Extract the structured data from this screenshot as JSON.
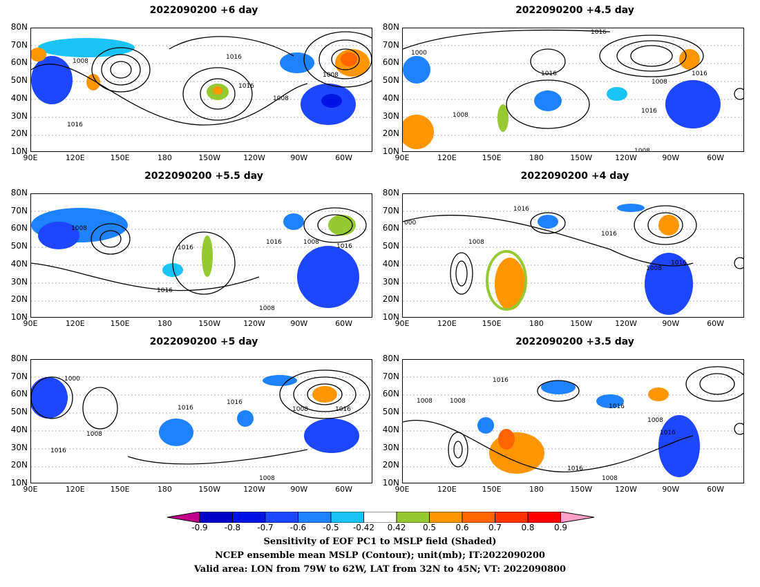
{
  "panels": [
    {
      "title": "2022090200  +6 day"
    },
    {
      "title": "2022090200  +4.5 day"
    },
    {
      "title": "2022090200  +5.5 day"
    },
    {
      "title": "2022090200  +4 day"
    },
    {
      "title": "2022090200  +5 day"
    },
    {
      "title": "2022090200  +3.5 day"
    }
  ],
  "axes": {
    "lat_labels": [
      "80N",
      "70N",
      "60N",
      "50N",
      "40N",
      "30N",
      "20N",
      "10N"
    ],
    "lon_labels": [
      "90E",
      "120E",
      "150E",
      "180",
      "150W",
      "120W",
      "90W",
      "60W"
    ]
  },
  "colorbar": {
    "ticks": [
      "-0.9",
      "-0.8",
      "-0.7",
      "-0.6",
      "-0.5",
      "-0.42",
      "0.42",
      "0.5",
      "0.6",
      "0.7",
      "0.8",
      "0.9"
    ],
    "colors": [
      "#c0008a",
      "#0000c8",
      "#0014e6",
      "#1e46ff",
      "#1e82ff",
      "#19c3f5",
      "#ffffff",
      "#96c832",
      "#ff9600",
      "#ff6400",
      "#ff3200",
      "#ff0000",
      "#ffa0c8"
    ]
  },
  "captions": [
    "Sensitivity of EOF PC1 to MSLP field (Shaded)",
    "NCEP ensemble mean MSLP (Contour); unit(mb); IT:2022090200",
    "Valid area: LON from 79W to 62W, LAT from 32N to 45N; VT: 2022090800"
  ],
  "contour_labels": {
    "p0": [
      "1008",
      "1016",
      "1016",
      "1008",
      "1008",
      "1016"
    ],
    "p1": [
      "1016",
      "1000",
      "1016",
      "1008",
      "1016",
      "1008",
      "1016",
      "1008"
    ],
    "p2": [
      "1008",
      "1016",
      "1016",
      "1016",
      "1008",
      "1016",
      "1008"
    ],
    "p3": [
      "1016",
      "000",
      "1008",
      "1016",
      "1008",
      "1016"
    ],
    "p4": [
      "1000",
      "1016",
      "1016",
      "1008",
      "1016",
      "1008",
      "1016",
      "1008"
    ],
    "p5": [
      "1016",
      "1008",
      "1008",
      "1016",
      "1008",
      "1016",
      "1016",
      "1008"
    ]
  }
}
